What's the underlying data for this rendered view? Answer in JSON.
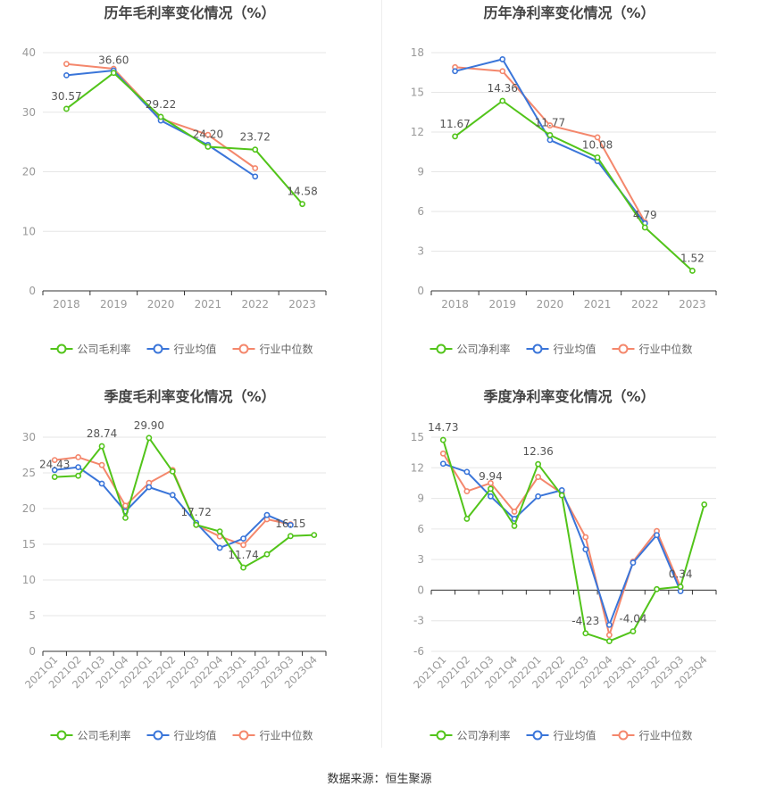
{
  "colors": {
    "company": "#52c41a",
    "avg": "#3a75d9",
    "median": "#f4876c",
    "axis": "#999999",
    "text": "#666666",
    "title": "#444444",
    "grid": "#e6e6e6"
  },
  "footer": {
    "source_label": "数据来源：恒生聚源"
  },
  "chart_data": [
    {
      "type": "line",
      "title": "历年毛利率变化情况（%）",
      "x": [
        "2018",
        "2019",
        "2020",
        "2021",
        "2022",
        "2023"
      ],
      "ylim": [
        0,
        40
      ],
      "yticks": [
        0,
        10,
        20,
        30,
        40
      ],
      "xtick_rotate": false,
      "series": [
        {
          "name": "公司毛利率",
          "key": "company",
          "values": [
            30.57,
            36.6,
            29.22,
            24.2,
            23.72,
            14.58
          ]
        },
        {
          "name": "行业均值",
          "key": "avg",
          "values": [
            36.2,
            37.0,
            28.6,
            24.5,
            19.2,
            null
          ]
        },
        {
          "name": "行业中位数",
          "key": "median",
          "values": [
            38.1,
            37.3,
            28.9,
            26.2,
            20.6,
            null
          ]
        }
      ],
      "data_labels": [
        {
          "series": 0,
          "index": 0,
          "text": "30.57"
        },
        {
          "series": 0,
          "index": 1,
          "text": "36.60"
        },
        {
          "series": 0,
          "index": 2,
          "text": "29.22"
        },
        {
          "series": 0,
          "index": 3,
          "text": "24.20"
        },
        {
          "series": 0,
          "index": 4,
          "text": "23.72"
        },
        {
          "series": 0,
          "index": 5,
          "text": "14.58"
        }
      ]
    },
    {
      "type": "line",
      "title": "历年净利率变化情况（%）",
      "x": [
        "2018",
        "2019",
        "2020",
        "2021",
        "2022",
        "2023"
      ],
      "ylim": [
        0,
        18
      ],
      "yticks": [
        0,
        3,
        6,
        9,
        12,
        15,
        18
      ],
      "xtick_rotate": false,
      "series": [
        {
          "name": "公司净利率",
          "key": "company",
          "values": [
            11.67,
            14.36,
            11.77,
            10.08,
            4.79,
            1.52
          ]
        },
        {
          "name": "行业均值",
          "key": "avg",
          "values": [
            16.6,
            17.5,
            11.4,
            9.8,
            5.1,
            null
          ]
        },
        {
          "name": "行业中位数",
          "key": "median",
          "values": [
            16.9,
            16.6,
            12.5,
            11.6,
            5.2,
            null
          ]
        }
      ],
      "data_labels": [
        {
          "series": 0,
          "index": 0,
          "text": "11.67"
        },
        {
          "series": 0,
          "index": 1,
          "text": "14.36"
        },
        {
          "series": 0,
          "index": 2,
          "text": "11.77"
        },
        {
          "series": 0,
          "index": 3,
          "text": "10.08"
        },
        {
          "series": 0,
          "index": 4,
          "text": "4.79"
        },
        {
          "series": 0,
          "index": 5,
          "text": "1.52"
        }
      ]
    },
    {
      "type": "line",
      "title": "季度毛利率变化情况（%）",
      "x": [
        "2021Q1",
        "2021Q2",
        "2021Q3",
        "2021Q4",
        "2022Q1",
        "2022Q2",
        "2022Q3",
        "2022Q4",
        "2023Q1",
        "2023Q2",
        "2023Q3",
        "2023Q4"
      ],
      "ylim": [
        0,
        30
      ],
      "yticks": [
        0,
        5,
        10,
        15,
        20,
        25,
        30
      ],
      "xtick_rotate": true,
      "series": [
        {
          "name": "公司毛利率",
          "key": "company",
          "values": [
            24.43,
            24.6,
            28.74,
            18.7,
            29.9,
            25.2,
            17.72,
            16.8,
            11.74,
            13.6,
            16.15,
            16.3
          ]
        },
        {
          "name": "行业均值",
          "key": "avg",
          "values": [
            25.4,
            25.8,
            23.5,
            19.6,
            23.0,
            21.9,
            18.0,
            14.5,
            15.8,
            19.1,
            17.7,
            null
          ]
        },
        {
          "name": "行业中位数",
          "key": "median",
          "values": [
            26.8,
            27.2,
            26.1,
            20.4,
            23.6,
            25.4,
            17.7,
            16.1,
            14.9,
            18.5,
            17.8,
            null
          ]
        }
      ],
      "data_labels": [
        {
          "series": 0,
          "index": 0,
          "text": "24.43"
        },
        {
          "series": 0,
          "index": 2,
          "text": "28.74"
        },
        {
          "series": 0,
          "index": 4,
          "text": "29.90"
        },
        {
          "series": 0,
          "index": 6,
          "text": "17.72"
        },
        {
          "series": 0,
          "index": 8,
          "text": "11.74"
        },
        {
          "series": 0,
          "index": 10,
          "text": "16.15"
        }
      ]
    },
    {
      "type": "line",
      "title": "季度净利率变化情况（%）",
      "x": [
        "2021Q1",
        "2021Q2",
        "2021Q3",
        "2021Q4",
        "2022Q1",
        "2022Q2",
        "2022Q3",
        "2022Q4",
        "2023Q1",
        "2023Q2",
        "2023Q3",
        "2023Q4"
      ],
      "ylim": [
        -6,
        15
      ],
      "yticks": [
        -6,
        -3,
        0,
        3,
        6,
        9,
        12,
        15
      ],
      "xtick_rotate": true,
      "series": [
        {
          "name": "公司净利率",
          "key": "company",
          "values": [
            14.73,
            7.0,
            9.94,
            6.3,
            12.36,
            9.3,
            -4.23,
            -5.0,
            -4.04,
            0.1,
            0.34,
            8.4
          ]
        },
        {
          "name": "行业均值",
          "key": "avg",
          "values": [
            12.4,
            11.6,
            9.2,
            7.0,
            9.2,
            9.8,
            4.0,
            -3.4,
            2.7,
            5.4,
            -0.1,
            null
          ]
        },
        {
          "name": "行业中位数",
          "key": "median",
          "values": [
            13.4,
            9.7,
            10.5,
            7.7,
            11.1,
            9.5,
            5.2,
            -4.4,
            2.8,
            5.8,
            0.3,
            null
          ]
        }
      ],
      "data_labels": [
        {
          "series": 0,
          "index": 0,
          "text": "14.73"
        },
        {
          "series": 0,
          "index": 2,
          "text": "9.94"
        },
        {
          "series": 0,
          "index": 4,
          "text": "12.36"
        },
        {
          "series": 0,
          "index": 6,
          "text": "-4.23"
        },
        {
          "series": 0,
          "index": 8,
          "text": "-4.04"
        },
        {
          "series": 0,
          "index": 10,
          "text": "0.34"
        }
      ]
    }
  ]
}
